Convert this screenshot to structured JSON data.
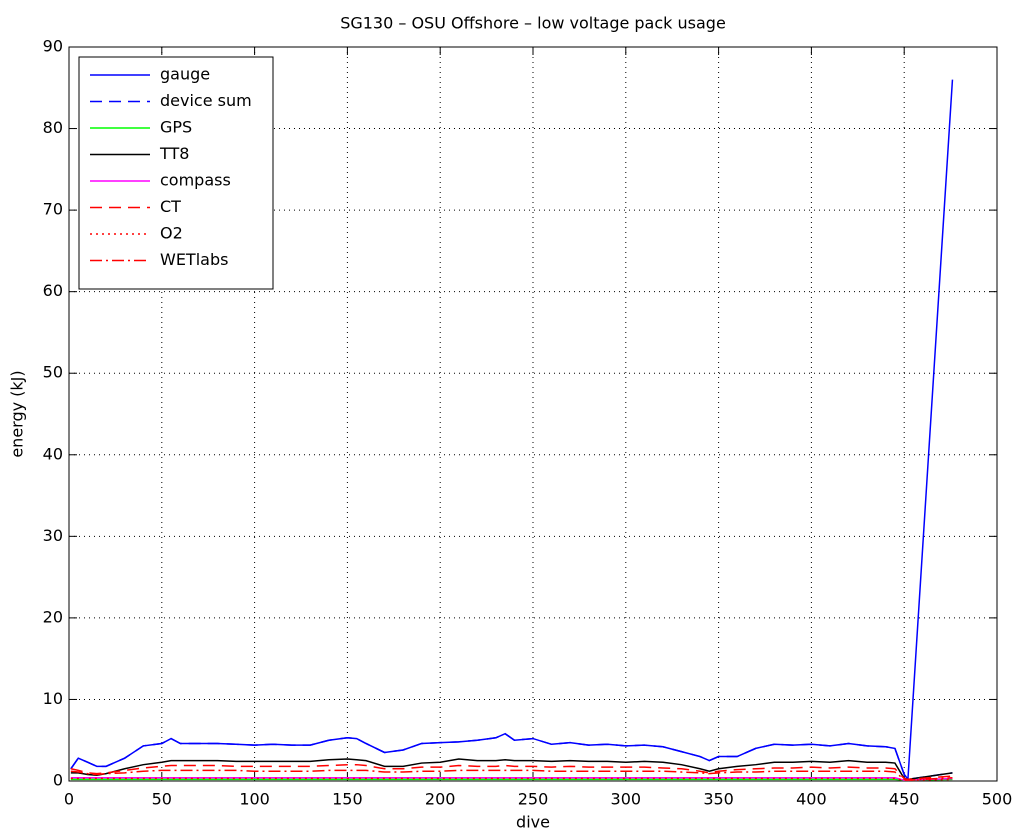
{
  "chart_data": {
    "type": "line",
    "title": "SG130 – OSU Offshore – low voltage pack usage",
    "x_label": "dive",
    "y_label": "energy (kJ)",
    "xlim": [
      0,
      500
    ],
    "xticks": [
      0,
      50,
      100,
      150,
      200,
      250,
      300,
      350,
      400,
      450,
      500
    ],
    "ylim": [
      0,
      90
    ],
    "yticks": [
      0,
      10,
      20,
      30,
      40,
      50,
      60,
      70,
      80,
      90
    ],
    "grid": true,
    "legend": "upper left",
    "x": [
      1,
      5,
      10,
      15,
      20,
      30,
      40,
      50,
      55,
      60,
      70,
      80,
      90,
      100,
      110,
      120,
      130,
      140,
      150,
      155,
      160,
      170,
      180,
      190,
      200,
      210,
      220,
      230,
      235,
      240,
      250,
      260,
      270,
      280,
      290,
      300,
      310,
      320,
      330,
      340,
      345,
      350,
      360,
      370,
      380,
      390,
      400,
      410,
      420,
      430,
      440,
      445,
      450,
      452,
      476
    ],
    "series": [
      {
        "name": "gauge",
        "color": "#0000ff",
        "dash": "solid",
        "values": [
          1.5,
          2.8,
          2.3,
          1.8,
          1.8,
          2.8,
          4.3,
          4.6,
          5.2,
          4.6,
          4.6,
          4.6,
          4.5,
          4.4,
          4.5,
          4.4,
          4.4,
          5.0,
          5.3,
          5.2,
          4.6,
          3.5,
          3.8,
          4.6,
          4.7,
          4.8,
          5.0,
          5.3,
          5.8,
          5.0,
          5.2,
          4.5,
          4.7,
          4.4,
          4.5,
          4.3,
          4.4,
          4.2,
          3.6,
          3.0,
          2.5,
          3.0,
          3.0,
          4.0,
          4.5,
          4.4,
          4.5,
          4.3,
          4.6,
          4.3,
          4.2,
          4.0,
          0.8,
          0.2,
          86
        ]
      },
      {
        "name": "device sum",
        "color": "#0000ff",
        "dash": "dashed",
        "values": [
          1.5,
          2.8,
          2.3,
          1.8,
          1.8,
          2.8,
          4.3,
          4.6,
          5.2,
          4.6,
          4.6,
          4.6,
          4.5,
          4.4,
          4.5,
          4.4,
          4.4,
          5.0,
          5.3,
          5.2,
          4.6,
          3.5,
          3.8,
          4.6,
          4.7,
          4.8,
          5.0,
          5.3,
          5.8,
          5.0,
          5.2,
          4.5,
          4.7,
          4.4,
          4.5,
          4.3,
          4.4,
          4.2,
          3.6,
          3.0,
          2.5,
          3.0,
          3.0,
          4.0,
          4.5,
          4.4,
          4.5,
          4.3,
          4.6,
          4.3,
          4.2,
          4.0,
          0.8,
          0.2,
          1.0
        ]
      },
      {
        "name": "GPS",
        "color": "#00ff00",
        "dash": "solid",
        "values": [
          0.2,
          0.2,
          0.2,
          0.2,
          0.2,
          0.2,
          0.2,
          0.2,
          0.2,
          0.2,
          0.2,
          0.2,
          0.2,
          0.2,
          0.2,
          0.2,
          0.2,
          0.2,
          0.2,
          0.2,
          0.2,
          0.2,
          0.2,
          0.2,
          0.2,
          0.2,
          0.2,
          0.2,
          0.2,
          0.2,
          0.2,
          0.2,
          0.2,
          0.2,
          0.2,
          0.2,
          0.2,
          0.2,
          0.2,
          0.2,
          0.2,
          0.2,
          0.2,
          0.2,
          0.2,
          0.2,
          0.2,
          0.2,
          0.2,
          0.2,
          0.2,
          0.2,
          0.1,
          0.1,
          0.2
        ]
      },
      {
        "name": "TT8",
        "color": "#000000",
        "dash": "solid",
        "values": [
          1.0,
          1.0,
          0.8,
          0.7,
          0.9,
          1.5,
          2.0,
          2.3,
          2.5,
          2.5,
          2.5,
          2.5,
          2.4,
          2.4,
          2.4,
          2.4,
          2.4,
          2.6,
          2.7,
          2.6,
          2.5,
          1.8,
          1.8,
          2.2,
          2.3,
          2.7,
          2.5,
          2.5,
          2.6,
          2.5,
          2.5,
          2.4,
          2.5,
          2.4,
          2.4,
          2.3,
          2.4,
          2.3,
          2.0,
          1.5,
          1.2,
          1.5,
          1.8,
          2.0,
          2.3,
          2.3,
          2.4,
          2.3,
          2.5,
          2.3,
          2.3,
          2.2,
          0.3,
          0.2,
          1.0
        ]
      },
      {
        "name": "compass",
        "color": "#ff00ff",
        "dash": "solid",
        "values": [
          0.4,
          0.4,
          0.4,
          0.4,
          0.4,
          0.4,
          0.4,
          0.4,
          0.4,
          0.4,
          0.4,
          0.4,
          0.4,
          0.4,
          0.4,
          0.4,
          0.4,
          0.4,
          0.4,
          0.4,
          0.4,
          0.4,
          0.4,
          0.4,
          0.4,
          0.4,
          0.4,
          0.4,
          0.4,
          0.4,
          0.4,
          0.4,
          0.4,
          0.4,
          0.4,
          0.4,
          0.4,
          0.4,
          0.4,
          0.4,
          0.4,
          0.4,
          0.4,
          0.4,
          0.4,
          0.4,
          0.4,
          0.4,
          0.4,
          0.4,
          0.4,
          0.4,
          0.1,
          0.1,
          0.3
        ]
      },
      {
        "name": "CT",
        "color": "#ff0000",
        "dash": "dashed",
        "values": [
          1.5,
          1.3,
          1.0,
          0.9,
          1.0,
          1.3,
          1.6,
          1.8,
          1.9,
          1.9,
          1.9,
          1.9,
          1.8,
          1.8,
          1.8,
          1.8,
          1.8,
          1.9,
          2.0,
          2.0,
          1.9,
          1.5,
          1.5,
          1.7,
          1.7,
          1.9,
          1.8,
          1.8,
          1.9,
          1.8,
          1.8,
          1.7,
          1.8,
          1.7,
          1.7,
          1.7,
          1.7,
          1.6,
          1.5,
          1.2,
          1.0,
          1.2,
          1.4,
          1.5,
          1.6,
          1.6,
          1.7,
          1.6,
          1.7,
          1.6,
          1.6,
          1.5,
          0.3,
          0.2,
          0.6
        ]
      },
      {
        "name": "O2",
        "color": "#ff0000",
        "dash": "dotted",
        "values": [
          0.3,
          0.3,
          0.3,
          0.3,
          0.3,
          0.3,
          0.3,
          0.3,
          0.3,
          0.3,
          0.3,
          0.3,
          0.3,
          0.3,
          0.3,
          0.3,
          0.3,
          0.3,
          0.3,
          0.3,
          0.3,
          0.3,
          0.3,
          0.3,
          0.3,
          0.3,
          0.3,
          0.3,
          0.3,
          0.3,
          0.3,
          0.3,
          0.3,
          0.3,
          0.3,
          0.3,
          0.3,
          0.3,
          0.3,
          0.3,
          0.3,
          0.3,
          0.3,
          0.3,
          0.3,
          0.3,
          0.3,
          0.3,
          0.3,
          0.3,
          0.3,
          0.3,
          0.1,
          0.1,
          0.2
        ]
      },
      {
        "name": "WETlabs",
        "color": "#ff0000",
        "dash": "dashdot",
        "values": [
          1.2,
          1.1,
          0.9,
          0.8,
          0.9,
          1.0,
          1.2,
          1.3,
          1.3,
          1.3,
          1.3,
          1.3,
          1.3,
          1.2,
          1.2,
          1.2,
          1.2,
          1.3,
          1.3,
          1.3,
          1.3,
          1.1,
          1.1,
          1.2,
          1.2,
          1.3,
          1.3,
          1.3,
          1.3,
          1.3,
          1.3,
          1.2,
          1.2,
          1.2,
          1.2,
          1.2,
          1.2,
          1.2,
          1.1,
          1.0,
          0.9,
          1.0,
          1.1,
          1.1,
          1.2,
          1.2,
          1.2,
          1.2,
          1.2,
          1.2,
          1.2,
          1.1,
          0.2,
          0.1,
          0.4
        ]
      }
    ]
  }
}
